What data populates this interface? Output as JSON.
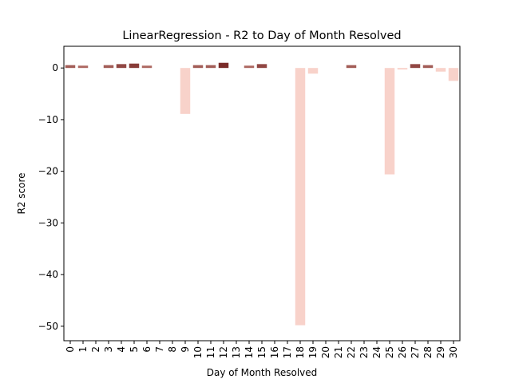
{
  "chart_data": {
    "type": "bar",
    "title": "LinearRegression - R2 to Day of Month Resolved",
    "xlabel": "Day of Month Resolved",
    "ylabel": "R2 score",
    "categories": [
      "0",
      "1",
      "2",
      "3",
      "4",
      "5",
      "6",
      "7",
      "8",
      "9",
      "10",
      "11",
      "12",
      "13",
      "14",
      "15",
      "16",
      "17",
      "18",
      "19",
      "20",
      "21",
      "22",
      "23",
      "24",
      "25",
      "26",
      "27",
      "28",
      "29",
      "30"
    ],
    "values": [
      0.55,
      0.45,
      0,
      0.55,
      0.75,
      0.85,
      0.45,
      0,
      0,
      -8.9,
      0.55,
      0.55,
      1.0,
      0,
      0.45,
      0.75,
      0,
      0,
      -49.8,
      -1.1,
      0,
      0,
      0.55,
      0,
      0,
      -20.6,
      -0.3,
      0.75,
      0.55,
      -0.7,
      -2.5
    ],
    "ylim": [
      -52.8,
      4.2
    ],
    "yticks": [
      0,
      -10,
      -20,
      -30,
      -40,
      -50
    ],
    "ytick_labels": [
      "0",
      "−10",
      "−20",
      "−30",
      "−40",
      "−50"
    ],
    "grid": false,
    "colors": {
      "positive_max": "#7a2b29",
      "negative": "#f8d2ca",
      "axis": "#000000"
    }
  }
}
